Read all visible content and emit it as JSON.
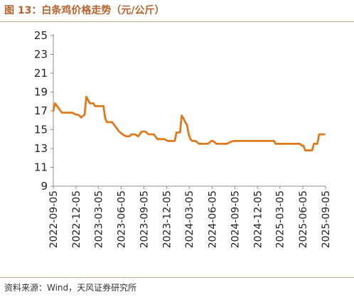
{
  "title": "图 13：白条鸡价格走势（元/公斤）",
  "source": "资料来源：Wind，天风证券研究所",
  "colors": {
    "line": "#e0791c",
    "title": "#b8612a",
    "rule": "#c9a68e",
    "axis": "#8c8c8c"
  },
  "chart_data": {
    "type": "line",
    "title": "白条鸡价格走势（元/公斤）",
    "xlabel": "",
    "ylabel": "",
    "ylim": [
      9,
      25
    ],
    "yticks": [
      9,
      11,
      13,
      15,
      17,
      19,
      21,
      23,
      25
    ],
    "grid": false,
    "legend": "none",
    "x_ticks": [
      "2022-09-05",
      "2022-12-05",
      "2023-03-05",
      "2023-06-05",
      "2023-09-05",
      "2023-12-05",
      "2024-03-05",
      "2024-06-05",
      "2024-09-05",
      "2024-12-05",
      "2025-03-05",
      "2025-06-05",
      "2025-09-05"
    ],
    "x_range": [
      "2022-09-05",
      "2025-09-05"
    ],
    "series": [
      {
        "name": "",
        "x": [
          "2022-09-05",
          "2022-09-12",
          "2022-09-26",
          "2022-10-10",
          "2022-11-07",
          "2022-11-21",
          "2022-12-05",
          "2022-12-12",
          "2022-12-19",
          "2022-12-26",
          "2023-01-09",
          "2023-01-16",
          "2023-01-30",
          "2023-02-13",
          "2023-02-20",
          "2023-03-05",
          "2023-03-12",
          "2023-03-26",
          "2023-04-02",
          "2023-04-09",
          "2023-04-16",
          "2023-04-30",
          "2023-05-14",
          "2023-05-28",
          "2023-06-11",
          "2023-06-25",
          "2023-07-09",
          "2023-07-16",
          "2023-07-30",
          "2023-08-13",
          "2023-08-27",
          "2023-09-10",
          "2023-09-24",
          "2023-10-01",
          "2023-10-15",
          "2023-10-29",
          "2023-11-12",
          "2023-11-26",
          "2023-12-10",
          "2023-12-24",
          "2024-01-07",
          "2024-01-14",
          "2024-01-28",
          "2024-02-04",
          "2024-02-11",
          "2024-02-18",
          "2024-02-25",
          "2024-03-03",
          "2024-03-10",
          "2024-03-17",
          "2024-03-31",
          "2024-04-14",
          "2024-04-28",
          "2024-05-12",
          "2024-05-19",
          "2024-06-02",
          "2024-06-09",
          "2024-06-23",
          "2024-07-07",
          "2024-07-21",
          "2024-08-04",
          "2024-08-18",
          "2024-09-01",
          "2024-10-06",
          "2024-11-03",
          "2024-12-08",
          "2025-01-05",
          "2025-02-09",
          "2025-02-16",
          "2025-03-02",
          "2025-03-30",
          "2025-04-27",
          "2025-05-25",
          "2025-06-01",
          "2025-06-08",
          "2025-06-15",
          "2025-06-29",
          "2025-07-13",
          "2025-07-20",
          "2025-08-03",
          "2025-08-10",
          "2025-08-31"
        ],
        "y": [
          17.0,
          17.8,
          17.3,
          16.8,
          16.8,
          16.8,
          16.6,
          16.6,
          16.5,
          16.3,
          16.6,
          18.5,
          17.8,
          17.8,
          17.5,
          17.5,
          17.5,
          17.5,
          16.2,
          15.8,
          15.8,
          15.8,
          15.3,
          14.8,
          14.5,
          14.3,
          14.3,
          14.5,
          14.5,
          14.3,
          14.8,
          14.8,
          14.5,
          14.5,
          14.5,
          14.0,
          14.0,
          14.0,
          13.8,
          13.8,
          13.8,
          14.7,
          14.7,
          16.5,
          16.2,
          15.8,
          15.5,
          14.5,
          14.0,
          13.8,
          13.8,
          13.5,
          13.5,
          13.5,
          13.5,
          13.8,
          13.8,
          13.5,
          13.5,
          13.5,
          13.5,
          13.7,
          13.8,
          13.8,
          13.8,
          13.8,
          13.8,
          13.8,
          13.5,
          13.5,
          13.5,
          13.5,
          13.5,
          13.3,
          13.3,
          12.8,
          12.8,
          12.8,
          13.5,
          13.5,
          14.5,
          14.5
        ]
      }
    ]
  }
}
